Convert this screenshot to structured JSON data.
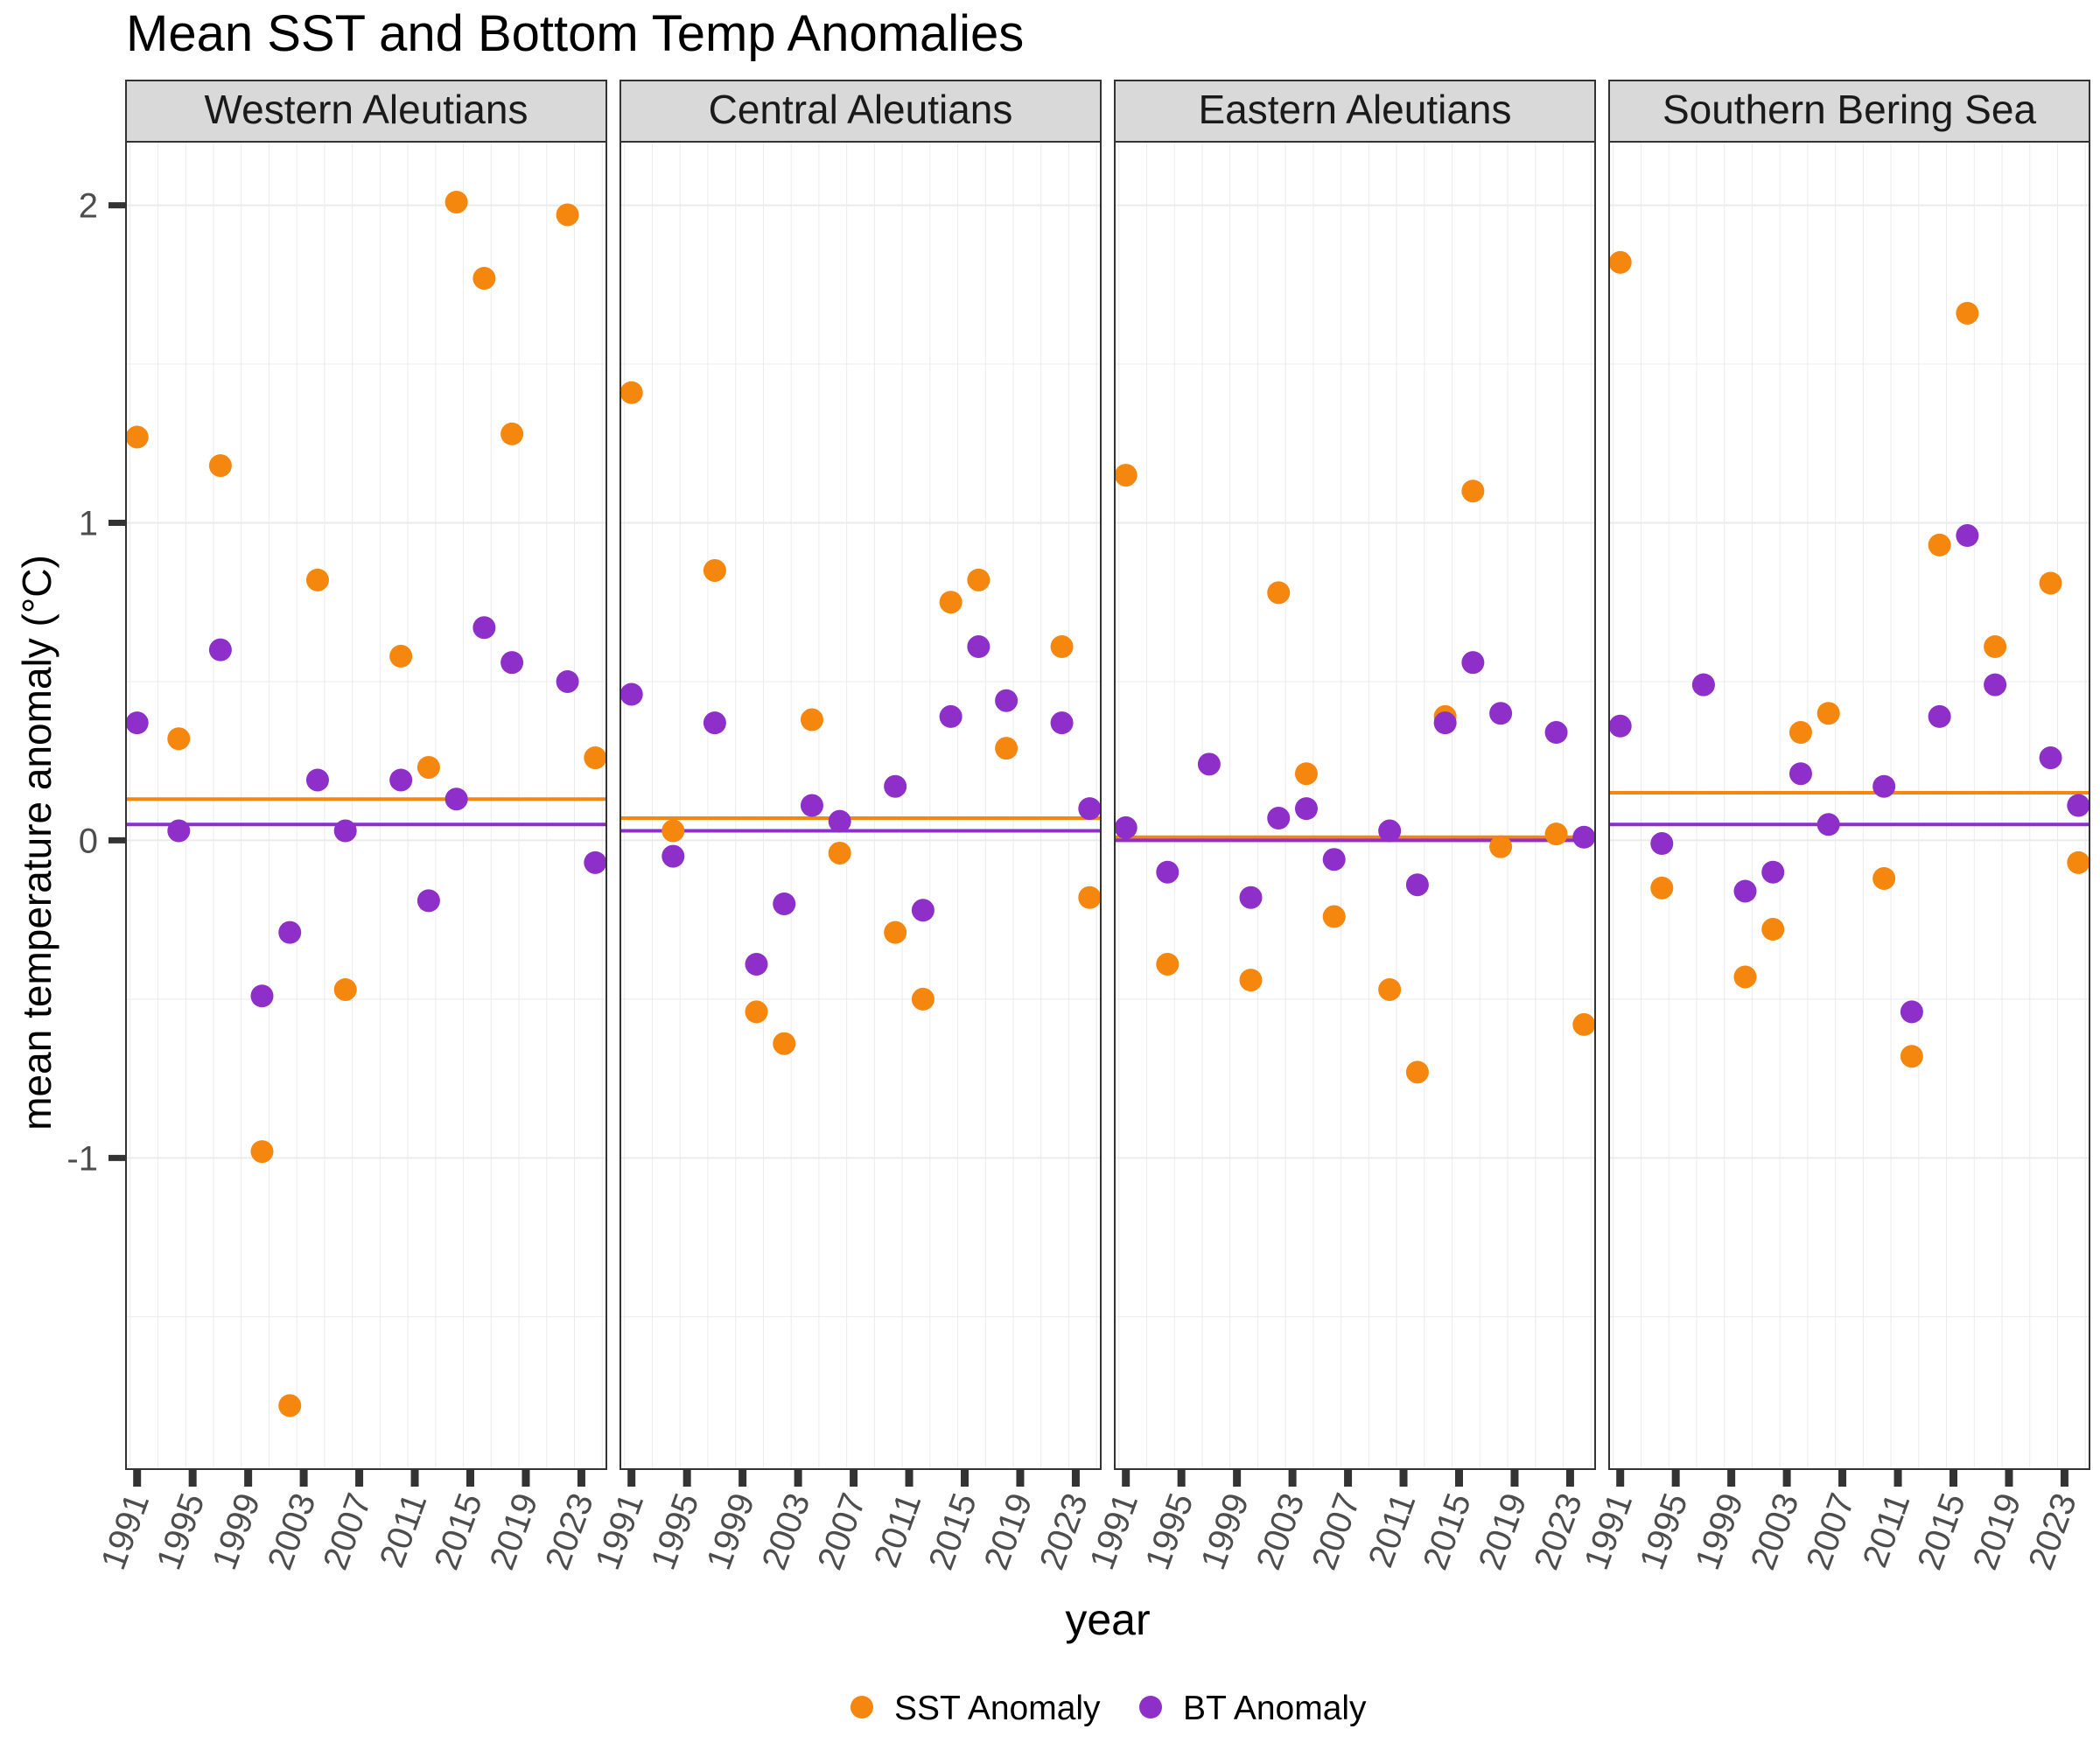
{
  "title": "Mean SST and Bottom Temp Anomalies",
  "colors": {
    "sst": "#f5870f",
    "bt": "#8e2fc9",
    "strip_fill": "#d9d9d9",
    "grid": "#ebebeb",
    "tick": "#333333"
  },
  "legend": {
    "position": "bottom"
  },
  "chart_data": {
    "type": "scatter",
    "title": "Mean SST and Bottom Temp Anomalies",
    "xlabel": "year",
    "ylabel": "mean temperature anomaly (°C)",
    "xlim": [
      1990.2,
      1995.2
    ],
    "x_ticks": [
      1991,
      1995,
      1999,
      2003,
      2007,
      2011,
      2015,
      2019,
      2023
    ],
    "x_range": [
      1990.2,
      2024.8
    ],
    "y_range": [
      -1.98,
      2.2
    ],
    "y_ticks": [
      -1,
      0,
      1,
      2
    ],
    "grid": true,
    "facets": [
      "Western Aleutians",
      "Central Aleutians",
      "Eastern Aleutians",
      "Southern Bering Sea"
    ],
    "series": [
      {
        "name": "SST Anomaly",
        "legend_label": "SST Anomaly",
        "color_key": "sst"
      },
      {
        "name": "BT Anomaly",
        "legend_label": "BT Anomaly",
        "color_key": "bt"
      }
    ],
    "panels": [
      {
        "facet": "Western Aleutians",
        "sst": [
          [
            1991,
            1.27
          ],
          [
            1994,
            0.32
          ],
          [
            1997,
            1.18
          ],
          [
            2000,
            -0.98
          ],
          [
            2002,
            -1.78
          ],
          [
            2004,
            0.82
          ],
          [
            2006,
            -0.47
          ],
          [
            2010,
            0.58
          ],
          [
            2012,
            0.23
          ],
          [
            2014,
            2.01
          ],
          [
            2016,
            1.77
          ],
          [
            2018,
            1.28
          ],
          [
            2022,
            1.97
          ],
          [
            2024,
            0.26
          ]
        ],
        "bt": [
          [
            1991,
            0.37
          ],
          [
            1994,
            0.03
          ],
          [
            1997,
            0.6
          ],
          [
            2000,
            -0.49
          ],
          [
            2002,
            -0.29
          ],
          [
            2004,
            0.19
          ],
          [
            2006,
            0.03
          ],
          [
            2010,
            0.19
          ],
          [
            2012,
            -0.19
          ],
          [
            2014,
            0.13
          ],
          [
            2016,
            0.67
          ],
          [
            2018,
            0.56
          ],
          [
            2022,
            0.5
          ],
          [
            2024,
            -0.07
          ]
        ],
        "sst_mean": 0.13,
        "bt_mean": 0.05
      },
      {
        "facet": "Central Aleutians",
        "sst": [
          [
            1991,
            1.41
          ],
          [
            1994,
            0.03
          ],
          [
            1997,
            0.85
          ],
          [
            2000,
            -0.54
          ],
          [
            2002,
            -0.64
          ],
          [
            2004,
            0.38
          ],
          [
            2006,
            -0.04
          ],
          [
            2010,
            -0.29
          ],
          [
            2012,
            -0.5
          ],
          [
            2014,
            0.75
          ],
          [
            2016,
            0.82
          ],
          [
            2018,
            0.29
          ],
          [
            2022,
            0.61
          ],
          [
            2024,
            -0.18
          ]
        ],
        "bt": [
          [
            1991,
            0.46
          ],
          [
            1994,
            -0.05
          ],
          [
            1997,
            0.37
          ],
          [
            2000,
            -0.39
          ],
          [
            2002,
            -0.2
          ],
          [
            2004,
            0.11
          ],
          [
            2006,
            0.06
          ],
          [
            2010,
            0.17
          ],
          [
            2012,
            -0.22
          ],
          [
            2014,
            0.39
          ],
          [
            2016,
            0.61
          ],
          [
            2018,
            0.44
          ],
          [
            2022,
            0.37
          ],
          [
            2024,
            0.1
          ]
        ],
        "sst_mean": 0.07,
        "bt_mean": 0.03
      },
      {
        "facet": "Eastern Aleutians",
        "sst": [
          [
            1991,
            1.15
          ],
          [
            1994,
            -0.39
          ],
          [
            2000,
            -0.44
          ],
          [
            2002,
            0.78
          ],
          [
            2004,
            0.21
          ],
          [
            2006,
            -0.24
          ],
          [
            2010,
            -0.47
          ],
          [
            2012,
            -0.73
          ],
          [
            2014,
            0.39
          ],
          [
            2016,
            1.1
          ],
          [
            2018,
            -0.02
          ],
          [
            2022,
            0.02
          ],
          [
            2024,
            -0.58
          ]
        ],
        "bt": [
          [
            1991,
            0.04
          ],
          [
            1994,
            -0.1
          ],
          [
            1997,
            0.24
          ],
          [
            2000,
            -0.18
          ],
          [
            2002,
            0.07
          ],
          [
            2004,
            0.1
          ],
          [
            2006,
            -0.06
          ],
          [
            2010,
            0.03
          ],
          [
            2012,
            -0.14
          ],
          [
            2014,
            0.37
          ],
          [
            2016,
            0.56
          ],
          [
            2018,
            0.4
          ],
          [
            2022,
            0.34
          ],
          [
            2024,
            0.01
          ]
        ],
        "sst_mean": 0.01,
        "bt_mean": 0.0
      },
      {
        "facet": "Southern Bering Sea",
        "sst": [
          [
            1991,
            1.82
          ],
          [
            1994,
            -0.15
          ],
          [
            1997,
            0.49
          ],
          [
            2000,
            -0.43
          ],
          [
            2002,
            -0.28
          ],
          [
            2004,
            0.34
          ],
          [
            2006,
            0.4
          ],
          [
            2010,
            -0.12
          ],
          [
            2012,
            -0.68
          ],
          [
            2014,
            0.93
          ],
          [
            2016,
            1.66
          ],
          [
            2018,
            0.61
          ],
          [
            2022,
            0.81
          ],
          [
            2024,
            -0.07
          ]
        ],
        "bt": [
          [
            1991,
            0.36
          ],
          [
            1994,
            -0.01
          ],
          [
            1997,
            0.49
          ],
          [
            2000,
            -0.16
          ],
          [
            2002,
            -0.1
          ],
          [
            2004,
            0.21
          ],
          [
            2006,
            0.05
          ],
          [
            2010,
            0.17
          ],
          [
            2012,
            -0.54
          ],
          [
            2014,
            0.39
          ],
          [
            2016,
            0.96
          ],
          [
            2018,
            0.49
          ],
          [
            2022,
            0.26
          ],
          [
            2024,
            0.11
          ]
        ],
        "sst_mean": 0.15,
        "bt_mean": 0.05
      }
    ]
  }
}
